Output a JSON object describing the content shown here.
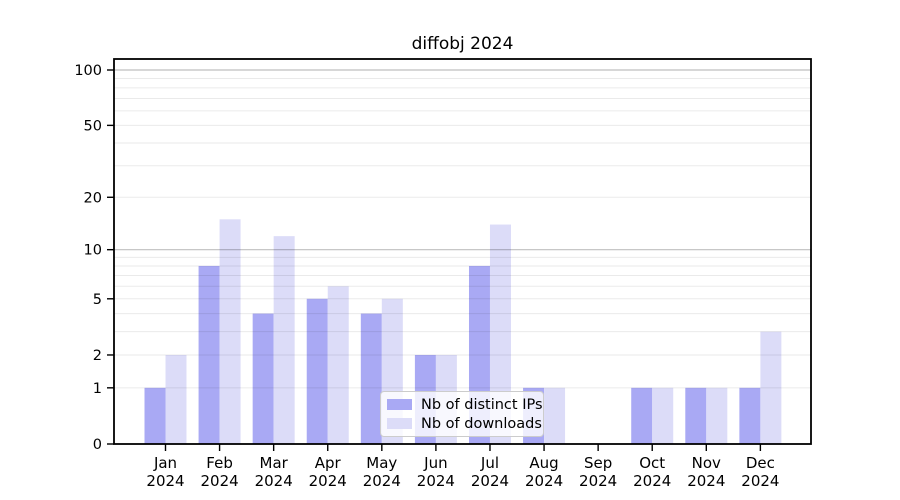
{
  "title": "diffobj 2024",
  "chart_data": {
    "type": "bar",
    "title": "diffobj 2024",
    "categories": [
      "Jan 2024",
      "Feb 2024",
      "Mar 2024",
      "Apr 2024",
      "May 2024",
      "Jun 2024",
      "Jul 2024",
      "Aug 2024",
      "Sep 2024",
      "Oct 2024",
      "Nov 2024",
      "Dec 2024"
    ],
    "series": [
      {
        "name": "Nb of distinct IPs",
        "color": "#a9a9f4",
        "values": [
          1,
          8,
          4,
          5,
          4,
          2,
          8,
          1,
          0,
          1,
          1,
          1
        ]
      },
      {
        "name": "Nb of downloads",
        "color": "#dcdcf8",
        "values": [
          2,
          15,
          12,
          6,
          5,
          2,
          14,
          1,
          0,
          1,
          1,
          3
        ]
      }
    ],
    "xlabel": "",
    "ylabel": "",
    "y_axis": {
      "scale": "log1p",
      "tick_labels": [
        0,
        1,
        2,
        5,
        10,
        20,
        50,
        100
      ],
      "minor_gridlines": [
        1,
        2,
        3,
        4,
        5,
        6,
        7,
        8,
        9,
        20,
        30,
        40,
        50,
        60,
        70,
        80,
        90
      ],
      "major_gridlines": [
        10,
        100
      ],
      "ylim": [
        0,
        115
      ]
    },
    "legend": {
      "position": "inside-bottom-center"
    },
    "grid": true
  },
  "colors": {
    "background": "#ffffff",
    "frame": "#000000",
    "major_grid": "#bfbfbf",
    "minor_grid": "#ebebeb",
    "text": "#000000"
  }
}
